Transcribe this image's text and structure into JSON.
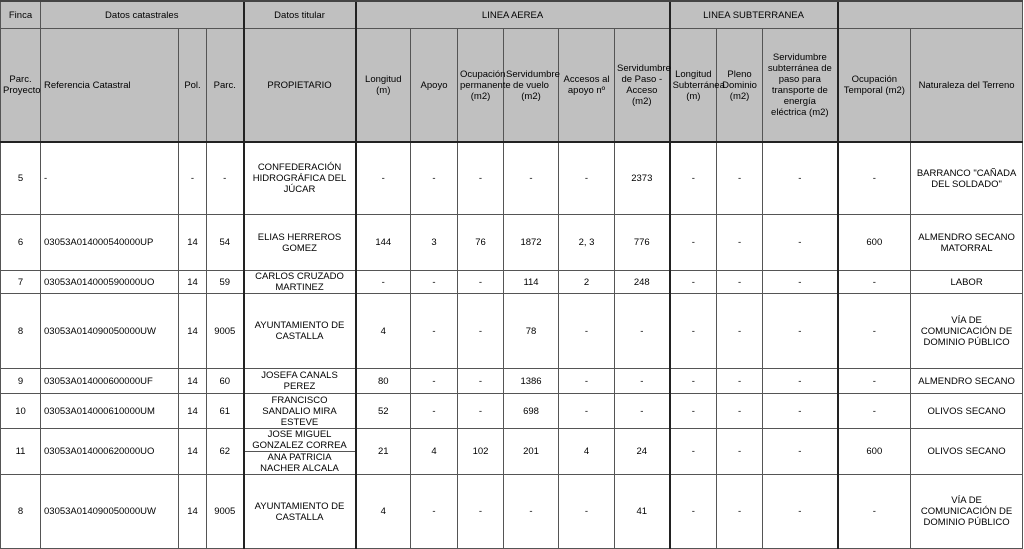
{
  "header_groups": [
    {
      "label": "Finca",
      "span": 1
    },
    {
      "label": "Datos catastrales",
      "span": 3
    },
    {
      "label": "Datos titular",
      "span": 1
    },
    {
      "label": "LINEA AEREA",
      "span": 6
    },
    {
      "label": "LINEA SUBTERRANEA",
      "span": 3
    },
    {
      "label": "",
      "span": 2
    }
  ],
  "columns": [
    "Parc. Proyecto",
    "Referencia Catastral",
    "Pol.",
    "Parc.",
    "PROPIETARIO",
    "Longitud (m)",
    "Apoyo",
    "Ocupación permanente (m2)",
    "Servidumbre de vuelo (m2)",
    "Accesos al apoyo nº",
    "Servidumbre de Paso - Acceso (m2)",
    "Longitud Subterránea (m)",
    "Pleno Dominio (m2)",
    "Servidumbre subterránea de paso para transporte de energía eléctrica (m2)",
    "Ocupación Temporal (m2)",
    "Naturaleza del Terreno"
  ],
  "rows": [
    {
      "finca": "5",
      "ref": "-",
      "pol": "-",
      "parc": "-",
      "owners": [
        "CONFEDERACIÓN HIDROGRÁFICA DEL JÚCAR"
      ],
      "longitud": "-",
      "apoyo": "-",
      "ocupacion": "-",
      "vuelo": "-",
      "accesos": "-",
      "paso": "2373",
      "long_sub": "-",
      "pleno": "-",
      "serv_sub": "-",
      "temporal": "-",
      "naturaleza": "BARRANCO \"CAÑADA DEL SOLDADO\""
    },
    {
      "finca": "6",
      "ref": "03053A014000540000UP",
      "pol": "14",
      "parc": "54",
      "owners": [
        "ELIAS HERREROS GOMEZ"
      ],
      "longitud": "144",
      "apoyo": "3",
      "ocupacion": "76",
      "vuelo": "1872",
      "accesos": "2, 3",
      "paso": "776",
      "long_sub": "-",
      "pleno": "-",
      "serv_sub": "-",
      "temporal": "600",
      "naturaleza": "ALMENDRO SECANO MATORRAL"
    },
    {
      "finca": "7",
      "ref": "03053A014000590000UO",
      "pol": "14",
      "parc": "59",
      "owners": [
        "CARLOS CRUZADO MARTINEZ"
      ],
      "longitud": "-",
      "apoyo": "-",
      "ocupacion": "-",
      "vuelo": "114",
      "accesos": "2",
      "paso": "248",
      "long_sub": "-",
      "pleno": "-",
      "serv_sub": "-",
      "temporal": "-",
      "naturaleza": "LABOR"
    },
    {
      "finca": "8",
      "ref": "03053A014090050000UW",
      "pol": "14",
      "parc": "9005",
      "owners": [
        "AYUNTAMIENTO DE CASTALLA"
      ],
      "longitud": "4",
      "apoyo": "-",
      "ocupacion": "-",
      "vuelo": "78",
      "accesos": "-",
      "paso": "-",
      "long_sub": "-",
      "pleno": "-",
      "serv_sub": "-",
      "temporal": "-",
      "naturaleza": "VÍA DE COMUNICACIÓN DE DOMINIO PÚBLICO"
    },
    {
      "finca": "9",
      "ref": "03053A014000600000UF",
      "pol": "14",
      "parc": "60",
      "owners": [
        "JOSEFA CANALS PEREZ"
      ],
      "longitud": "80",
      "apoyo": "-",
      "ocupacion": "-",
      "vuelo": "1386",
      "accesos": "-",
      "paso": "-",
      "long_sub": "-",
      "pleno": "-",
      "serv_sub": "-",
      "temporal": "-",
      "naturaleza": "ALMENDRO SECANO"
    },
    {
      "finca": "10",
      "ref": "03053A014000610000UM",
      "pol": "14",
      "parc": "61",
      "owners": [
        "FRANCISCO SANDALIO MIRA ESTEVE"
      ],
      "longitud": "52",
      "apoyo": "-",
      "ocupacion": "-",
      "vuelo": "698",
      "accesos": "-",
      "paso": "-",
      "long_sub": "-",
      "pleno": "-",
      "serv_sub": "-",
      "temporal": "-",
      "naturaleza": "OLIVOS SECANO"
    },
    {
      "finca": "11",
      "ref": "03053A014000620000UO",
      "pol": "14",
      "parc": "62",
      "owners": [
        "JOSE MIGUEL GONZALEZ CORREA",
        "ANA PATRICIA NACHER ALCALA"
      ],
      "longitud": "21",
      "apoyo": "4",
      "ocupacion": "102",
      "vuelo": "201",
      "accesos": "4",
      "paso": "24",
      "long_sub": "-",
      "pleno": "-",
      "serv_sub": "-",
      "temporal": "600",
      "naturaleza": "OLIVOS SECANO"
    },
    {
      "finca": "8",
      "ref": "03053A014090050000UW",
      "pol": "14",
      "parc": "9005",
      "owners": [
        "AYUNTAMIENTO DE CASTALLA"
      ],
      "longitud": "4",
      "apoyo": "-",
      "ocupacion": "-",
      "vuelo": "-",
      "accesos": "-",
      "paso": "41",
      "long_sub": "-",
      "pleno": "-",
      "serv_sub": "-",
      "temporal": "-",
      "naturaleza": "VÍA DE COMUNICACIÓN DE DOMINIO PÚBLICO"
    }
  ]
}
